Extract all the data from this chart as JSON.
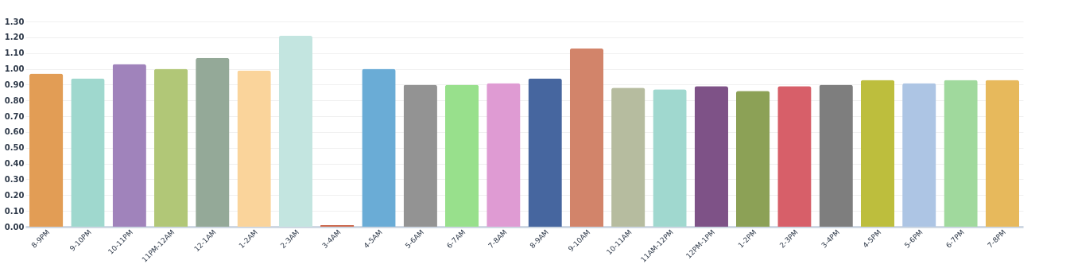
{
  "chart_data": {
    "type": "bar",
    "categories": [
      "8-9PM",
      "9-10PM",
      "10-11PM",
      "11PM-12AM",
      "12-1AM",
      "1-2AM",
      "2-3AM",
      "3-4AM",
      "4-5AM",
      "5-6AM",
      "6-7AM",
      "7-8AM",
      "8-9AM",
      "9-10AM",
      "10-11AM",
      "11AM-12PM",
      "12PM-1PM",
      "1-2PM",
      "2-3PM",
      "3-4PM",
      "4-5PM",
      "5-6PM",
      "6-7PM",
      "7-8PM"
    ],
    "values": [
      0.97,
      0.94,
      1.03,
      1.0,
      1.07,
      0.99,
      1.21,
      0.01,
      1.0,
      0.9,
      0.9,
      0.91,
      0.94,
      1.13,
      0.88,
      0.87,
      0.89,
      0.86,
      0.89,
      0.9,
      0.93,
      0.91,
      0.93,
      0.93
    ],
    "colors": [
      "#e29d55",
      "#9fd8ce",
      "#a083bb",
      "#b1c777",
      "#94a998",
      "#fad49b",
      "#c3e5e0",
      "#cc6a4f",
      "#6aacd6",
      "#939393",
      "#98e08c",
      "#df9bd3",
      "#46669f",
      "#d2846a",
      "#b6bc9f",
      "#a0d8cf",
      "#7e5287",
      "#8ca156",
      "#d75f69",
      "#7e7e7e",
      "#bdbe3d",
      "#adc5e4",
      "#a0d99d",
      "#e7b95c"
    ],
    "ylim": [
      0,
      1.3
    ],
    "yticks": [
      {
        "value": 0,
        "label": "0.00"
      },
      {
        "value": 0.1,
        "label": "0.10"
      },
      {
        "value": 0.2,
        "label": "0.20"
      },
      {
        "value": 0.3,
        "label": "0.30"
      },
      {
        "value": 0.4,
        "label": "0.40"
      },
      {
        "value": 0.5,
        "label": "0.50"
      },
      {
        "value": 0.6,
        "label": "0.60"
      },
      {
        "value": 0.7,
        "label": "0.70"
      },
      {
        "value": 0.8,
        "label": "0.80"
      },
      {
        "value": 0.9,
        "label": "0.90"
      },
      {
        "value": 1.0,
        "label": "1.00"
      },
      {
        "value": 1.1,
        "label": "1.10"
      },
      {
        "value": 1.2,
        "label": "1.20"
      },
      {
        "value": 1.3,
        "label": "1.30"
      }
    ],
    "grid": "y"
  }
}
